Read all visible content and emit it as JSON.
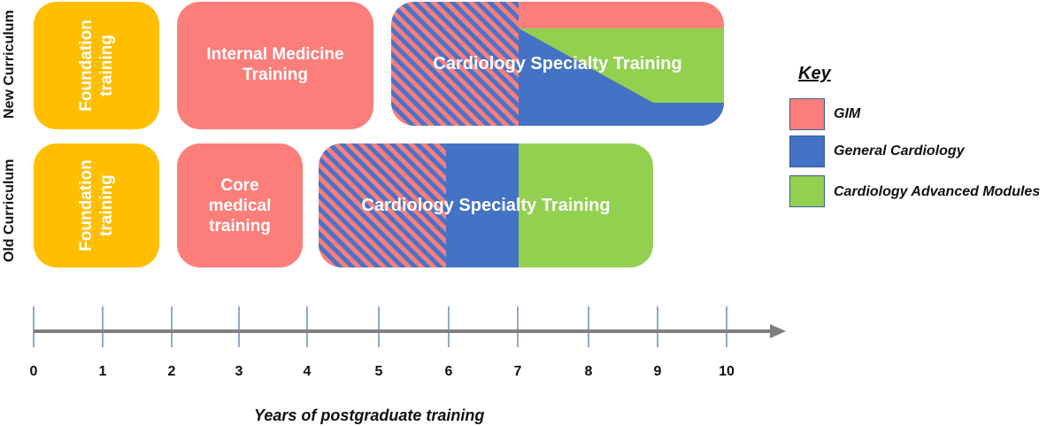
{
  "rows": {
    "new": {
      "label": "New Curriculum"
    },
    "old": {
      "label": "Old Curriculum"
    }
  },
  "new_row": {
    "foundation": "Foundation training",
    "internal_medicine": "Internal Medicine Training",
    "specialty": "Cardiology Specialty Training"
  },
  "old_row": {
    "foundation": "Foundation training",
    "core_medical": "Core medical training",
    "specialty": "Cardiology Specialty Training"
  },
  "key": {
    "title": "Key",
    "items": [
      {
        "label": "GIM",
        "color": "#fb7e7a"
      },
      {
        "label": "General Cardiology",
        "color": "#4472c4"
      },
      {
        "label": "Cardiology Advanced Modules",
        "color": "#92d050"
      }
    ]
  },
  "axis": {
    "ticks": [
      "0",
      "1",
      "2",
      "3",
      "4",
      "5",
      "6",
      "7",
      "8",
      "9",
      "10"
    ],
    "title": "Years of postgraduate training"
  },
  "colors": {
    "foundation": "#ffbf00",
    "gim": "#fb7e7a",
    "general_cardiology": "#4472c4",
    "advanced_modules": "#92d050",
    "axis": "#7f7f7f",
    "tick": "#4a6fa5"
  }
}
